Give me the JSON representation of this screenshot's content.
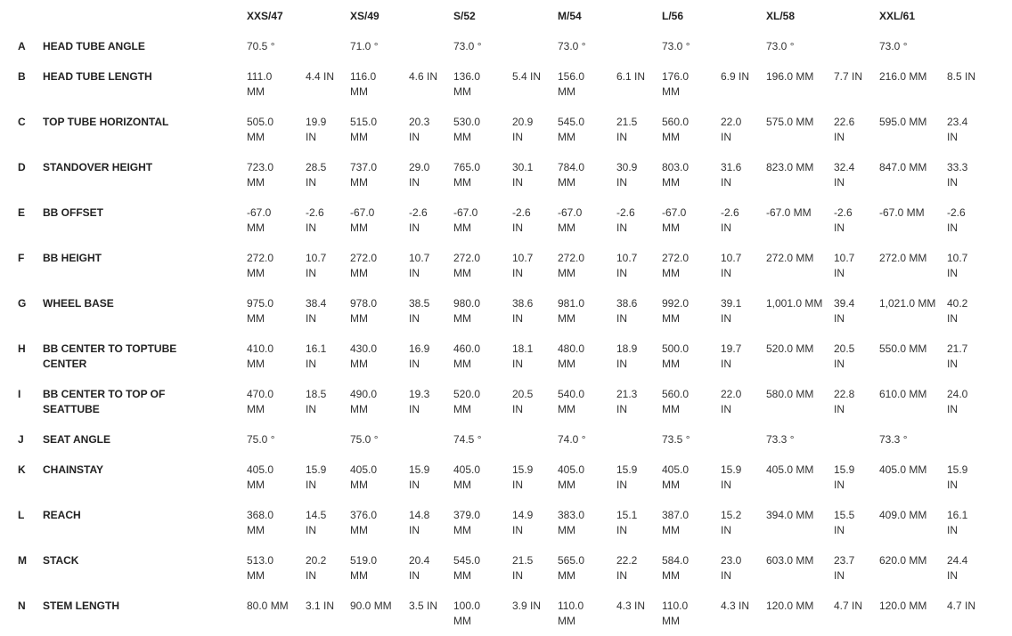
{
  "sizes": [
    "XXS/47",
    "XS/49",
    "S/52",
    "M/54",
    "L/56",
    "XL/58",
    "XXL/61"
  ],
  "rows": [
    {
      "letter": "A",
      "label": "HEAD TUBE ANGLE",
      "values": [
        [
          "70.5 °"
        ],
        [
          "71.0 °"
        ],
        [
          "73.0 °"
        ],
        [
          "73.0 °"
        ],
        [
          "73.0 °"
        ],
        [
          "73.0 °"
        ],
        [
          "73.0 °"
        ]
      ]
    },
    {
      "letter": "B",
      "label": "HEAD TUBE LENGTH",
      "values": [
        [
          "111.0 MM",
          "4.4 IN"
        ],
        [
          "116.0 MM",
          "4.6 IN"
        ],
        [
          "136.0 MM",
          "5.4 IN"
        ],
        [
          "156.0 MM",
          "6.1 IN"
        ],
        [
          "176.0 MM",
          "6.9 IN"
        ],
        [
          "196.0 MM",
          "7.7 IN"
        ],
        [
          "216.0 MM",
          "8.5 IN"
        ]
      ]
    },
    {
      "letter": "C",
      "label": "TOP TUBE HORIZONTAL",
      "values": [
        [
          "505.0 MM",
          "19.9 IN"
        ],
        [
          "515.0 MM",
          "20.3 IN"
        ],
        [
          "530.0 MM",
          "20.9 IN"
        ],
        [
          "545.0 MM",
          "21.5 IN"
        ],
        [
          "560.0 MM",
          "22.0 IN"
        ],
        [
          "575.0 MM",
          "22.6 IN"
        ],
        [
          "595.0 MM",
          "23.4 IN"
        ]
      ]
    },
    {
      "letter": "D",
      "label": "STANDOVER HEIGHT",
      "values": [
        [
          "723.0 MM",
          "28.5 IN"
        ],
        [
          "737.0 MM",
          "29.0 IN"
        ],
        [
          "765.0 MM",
          "30.1 IN"
        ],
        [
          "784.0 MM",
          "30.9 IN"
        ],
        [
          "803.0 MM",
          "31.6 IN"
        ],
        [
          "823.0 MM",
          "32.4 IN"
        ],
        [
          "847.0 MM",
          "33.3 IN"
        ]
      ]
    },
    {
      "letter": "E",
      "label": "BB OFFSET",
      "values": [
        [
          "-67.0 MM",
          "-2.6 IN"
        ],
        [
          "-67.0 MM",
          "-2.6 IN"
        ],
        [
          "-67.0 MM",
          "-2.6 IN"
        ],
        [
          "-67.0 MM",
          "-2.6 IN"
        ],
        [
          "-67.0 MM",
          "-2.6 IN"
        ],
        [
          "-67.0 MM",
          "-2.6 IN"
        ],
        [
          "-67.0 MM",
          "-2.6 IN"
        ]
      ]
    },
    {
      "letter": "F",
      "label": "BB HEIGHT",
      "values": [
        [
          "272.0 MM",
          "10.7 IN"
        ],
        [
          "272.0 MM",
          "10.7 IN"
        ],
        [
          "272.0 MM",
          "10.7 IN"
        ],
        [
          "272.0 MM",
          "10.7 IN"
        ],
        [
          "272.0 MM",
          "10.7 IN"
        ],
        [
          "272.0 MM",
          "10.7 IN"
        ],
        [
          "272.0 MM",
          "10.7 IN"
        ]
      ]
    },
    {
      "letter": "G",
      "label": "WHEEL BASE",
      "values": [
        [
          "975.0 MM",
          "38.4 IN"
        ],
        [
          "978.0 MM",
          "38.5 IN"
        ],
        [
          "980.0 MM",
          "38.6 IN"
        ],
        [
          "981.0 MM",
          "38.6 IN"
        ],
        [
          "992.0 MM",
          "39.1 IN"
        ],
        [
          "1,001.0 MM",
          "39.4 IN"
        ],
        [
          "1,021.0 MM",
          "40.2 IN"
        ]
      ]
    },
    {
      "letter": "H",
      "label": "BB CENTER TO TOPTUBE CENTER",
      "values": [
        [
          "410.0 MM",
          "16.1 IN"
        ],
        [
          "430.0 MM",
          "16.9 IN"
        ],
        [
          "460.0 MM",
          "18.1 IN"
        ],
        [
          "480.0 MM",
          "18.9 IN"
        ],
        [
          "500.0 MM",
          "19.7 IN"
        ],
        [
          "520.0 MM",
          "20.5 IN"
        ],
        [
          "550.0 MM",
          "21.7 IN"
        ]
      ]
    },
    {
      "letter": "I",
      "label": "BB CENTER TO TOP OF SEATTUBE",
      "values": [
        [
          "470.0 MM",
          "18.5 IN"
        ],
        [
          "490.0 MM",
          "19.3 IN"
        ],
        [
          "520.0 MM",
          "20.5 IN"
        ],
        [
          "540.0 MM",
          "21.3 IN"
        ],
        [
          "560.0 MM",
          "22.0 IN"
        ],
        [
          "580.0 MM",
          "22.8 IN"
        ],
        [
          "610.0 MM",
          "24.0 IN"
        ]
      ]
    },
    {
      "letter": "J",
      "label": "SEAT ANGLE",
      "values": [
        [
          "75.0 °"
        ],
        [
          "75.0 °"
        ],
        [
          "74.5 °"
        ],
        [
          "74.0 °"
        ],
        [
          "73.5 °"
        ],
        [
          "73.3 °"
        ],
        [
          "73.3 °"
        ]
      ]
    },
    {
      "letter": "K",
      "label": "CHAINSTAY",
      "values": [
        [
          "405.0 MM",
          "15.9 IN"
        ],
        [
          "405.0 MM",
          "15.9 IN"
        ],
        [
          "405.0 MM",
          "15.9 IN"
        ],
        [
          "405.0 MM",
          "15.9 IN"
        ],
        [
          "405.0 MM",
          "15.9 IN"
        ],
        [
          "405.0 MM",
          "15.9 IN"
        ],
        [
          "405.0 MM",
          "15.9 IN"
        ]
      ]
    },
    {
      "letter": "L",
      "label": "REACH",
      "values": [
        [
          "368.0 MM",
          "14.5 IN"
        ],
        [
          "376.0 MM",
          "14.8 IN"
        ],
        [
          "379.0 MM",
          "14.9 IN"
        ],
        [
          "383.0 MM",
          "15.1 IN"
        ],
        [
          "387.0 MM",
          "15.2 IN"
        ],
        [
          "394.0 MM",
          "15.5 IN"
        ],
        [
          "409.0 MM",
          "16.1 IN"
        ]
      ]
    },
    {
      "letter": "M",
      "label": "STACK",
      "values": [
        [
          "513.0 MM",
          "20.2 IN"
        ],
        [
          "519.0 MM",
          "20.4 IN"
        ],
        [
          "545.0 MM",
          "21.5 IN"
        ],
        [
          "565.0 MM",
          "22.2 IN"
        ],
        [
          "584.0 MM",
          "23.0 IN"
        ],
        [
          "603.0 MM",
          "23.7 IN"
        ],
        [
          "620.0 MM",
          "24.4 IN"
        ]
      ]
    },
    {
      "letter": "N",
      "label": "STEM LENGTH",
      "values": [
        [
          "80.0 MM",
          "3.1 IN"
        ],
        [
          "90.0 MM",
          "3.5 IN"
        ],
        [
          "100.0 MM",
          "3.9 IN"
        ],
        [
          "110.0 MM",
          "4.3 IN"
        ],
        [
          "110.0 MM",
          "4.3 IN"
        ],
        [
          "120.0 MM",
          "4.7 IN"
        ],
        [
          "120.0 MM",
          "4.7 IN"
        ]
      ]
    }
  ]
}
